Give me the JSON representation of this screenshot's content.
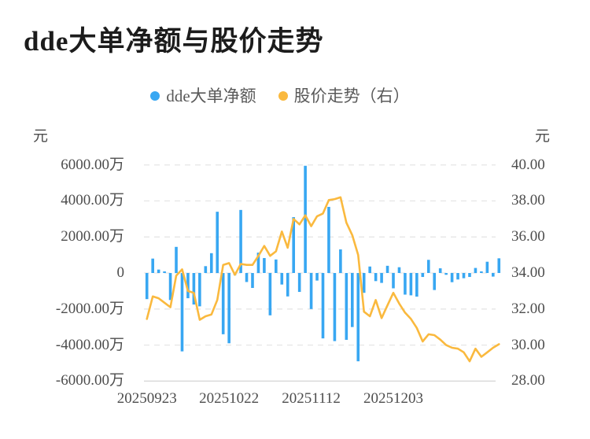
{
  "title": "dde大单净额与股价走势",
  "legend": [
    {
      "label": "dde大单净额",
      "color": "#38a7f2",
      "series": "bar"
    },
    {
      "label": "股价走势（右）",
      "color": "#fab93e",
      "series": "line"
    }
  ],
  "chart_data": {
    "type": "combo",
    "title": "dde大单净额与股价走势",
    "x_count": 61,
    "x_axis": {
      "tick_labels": [
        "20250923",
        "20251022",
        "20251112",
        "20251203"
      ],
      "tick_indices": [
        0,
        14,
        28,
        42
      ]
    },
    "left_axis": {
      "unit": "元",
      "tick_labels": [
        "6000.00万",
        "4000.00万",
        "2000.00万",
        "0",
        "-2000.00万",
        "-4000.00万",
        "-6000.00万"
      ],
      "ylim_wan": [
        -6000,
        6000
      ]
    },
    "right_axis": {
      "unit": "元",
      "tick_labels": [
        "40.00",
        "38.00",
        "36.00",
        "34.00",
        "32.00",
        "30.00",
        "28.00"
      ],
      "ylim": [
        28,
        40
      ]
    },
    "grid": {
      "dashed_color": "#e6e6e6",
      "baseline_color": "#d4d4d4"
    },
    "series": [
      {
        "name": "dde大单净额",
        "type": "bar",
        "axis": "left",
        "unit": "万",
        "color": "#38a7f2",
        "values": [
          -1450,
          800,
          190,
          90,
          -1500,
          1450,
          -4350,
          -1400,
          -1750,
          -1850,
          380,
          1100,
          3400,
          -3400,
          -3900,
          -120,
          3500,
          -500,
          -830,
          1130,
          830,
          -2350,
          750,
          -640,
          -1300,
          3100,
          -1050,
          5950,
          -2000,
          -420,
          -3630,
          3670,
          -3780,
          1310,
          -3710,
          -3000,
          -4900,
          -1100,
          360,
          -450,
          -550,
          400,
          -850,
          320,
          -1200,
          -1240,
          -1310,
          -220,
          730,
          -945,
          260,
          -100,
          -510,
          -360,
          -290,
          -220,
          280,
          90,
          625,
          -200,
          815
        ]
      },
      {
        "name": "股价走势（右）",
        "type": "line",
        "axis": "right",
        "unit": "元",
        "color": "#fab93e",
        "values": [
          31.45,
          32.7,
          32.6,
          32.35,
          32.1,
          33.85,
          34.2,
          33.0,
          32.9,
          31.4,
          31.6,
          31.7,
          32.5,
          34.45,
          34.55,
          33.9,
          34.5,
          34.45,
          34.45,
          34.95,
          35.5,
          34.95,
          35.2,
          36.3,
          35.4,
          37.0,
          36.7,
          37.2,
          36.6,
          37.15,
          37.3,
          38.05,
          38.1,
          38.2,
          36.8,
          36.1,
          35.0,
          31.85,
          31.6,
          32.5,
          31.5,
          32.2,
          32.9,
          32.3,
          31.8,
          31.45,
          30.95,
          30.2,
          30.6,
          30.55,
          30.3,
          30.0,
          29.85,
          29.8,
          29.6,
          29.1,
          29.8,
          29.35,
          29.6,
          29.85,
          30.05
        ]
      }
    ]
  }
}
